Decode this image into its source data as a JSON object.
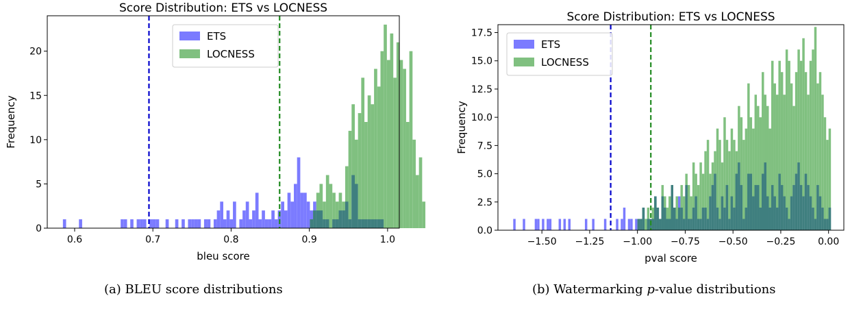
{
  "figure": {
    "caption_a": "(a) BLEU score distributions",
    "caption_b_prefix": "(b) Watermarking ",
    "caption_b_italic": "p",
    "caption_b_suffix": "-value distributions"
  },
  "colors": {
    "ets": "#7b7bff",
    "locness": "#80c080",
    "overlap": "#3f7f7f",
    "ets_line": "#0000cc",
    "locness_line": "#228b22"
  },
  "chart_data": [
    {
      "type": "bar",
      "title": "Score Distribution: ETS vs LOCNESS",
      "xlabel": "bleu score",
      "ylabel": "Frequency",
      "xlim": [
        0.565,
        1.015
      ],
      "ylim": [
        0,
        24
      ],
      "xticks": [
        0.6,
        0.7,
        0.8,
        0.9,
        1.0
      ],
      "xtick_labels": [
        "0.6",
        "0.7",
        "0.8",
        "0.9",
        "1.0"
      ],
      "yticks": [
        0,
        5,
        10,
        15,
        20
      ],
      "ytick_labels": [
        "0",
        "5",
        "10",
        "15",
        "20"
      ],
      "legend": {
        "loc": "upper center",
        "entries": [
          "ETS",
          "LOCNESS"
        ]
      },
      "mean_lines": {
        "ETS": 0.695,
        "LOCNESS": 0.862
      },
      "bin_start": 0.585,
      "bin_width": 0.0041,
      "series": [
        {
          "name": "ETS",
          "values": [
            1,
            0,
            0,
            0,
            0,
            1,
            0,
            0,
            0,
            0,
            0,
            0,
            0,
            0,
            0,
            0,
            0,
            0,
            1,
            1,
            0,
            1,
            0,
            1,
            1,
            1,
            0,
            1,
            1,
            1,
            0,
            0,
            1,
            0,
            0,
            1,
            0,
            1,
            0,
            1,
            1,
            1,
            1,
            0,
            1,
            1,
            0,
            1,
            2,
            3,
            1,
            2,
            1,
            3,
            0,
            1,
            2,
            3,
            1,
            2,
            4,
            1,
            2,
            1,
            1,
            2,
            1,
            2,
            3,
            2,
            4,
            3,
            5,
            8,
            4,
            4,
            3,
            2,
            3,
            2,
            2,
            1,
            1,
            0,
            1,
            1,
            2,
            2,
            3,
            1,
            6,
            5,
            1,
            1,
            1,
            1,
            1,
            1,
            1,
            1,
            0
          ]
        },
        {
          "name": "LOCNESS",
          "values": [
            0,
            0,
            0,
            0,
            0,
            0,
            0,
            0,
            0,
            0,
            0,
            0,
            0,
            0,
            0,
            0,
            0,
            0,
            0,
            0,
            0,
            0,
            0,
            0,
            0,
            0,
            0,
            0,
            0,
            0,
            0,
            0,
            0,
            0,
            0,
            0,
            0,
            0,
            0,
            0,
            0,
            0,
            0,
            0,
            0,
            0,
            0,
            0,
            0,
            0,
            0,
            0,
            0,
            0,
            0,
            0,
            0,
            0,
            0,
            0,
            0,
            0,
            0,
            0,
            0,
            0,
            0,
            0,
            0,
            0,
            0,
            0,
            0,
            0,
            0,
            0,
            0,
            1,
            2,
            4,
            5,
            3,
            6,
            5,
            4,
            3,
            4,
            3,
            7,
            11,
            14,
            10,
            13,
            17,
            12,
            15,
            14,
            18,
            16,
            20,
            23,
            19,
            22,
            17,
            21,
            19,
            18,
            12,
            20,
            10,
            6,
            8,
            3
          ]
        }
      ]
    },
    {
      "type": "bar",
      "title": "Score Distribution: ETS vs LOCNESS",
      "xlabel": "pval score",
      "ylabel": "Frequency",
      "xlim": [
        -1.73,
        0.08
      ],
      "ylim": [
        0,
        18.2
      ],
      "xticks": [
        -1.5,
        -1.25,
        -1.0,
        -0.75,
        -0.5,
        -0.25,
        0.0
      ],
      "xtick_labels": [
        "−1.50",
        "−1.25",
        "−1.00",
        "−0.75",
        "−0.50",
        "−0.25",
        "0.00"
      ],
      "yticks": [
        0,
        2.5,
        5,
        7.5,
        10,
        12.5,
        15,
        17.5
      ],
      "ytick_labels": [
        "0.0",
        "2.5",
        "5.0",
        "7.5",
        "10.0",
        "12.5",
        "15.0",
        "17.5"
      ],
      "legend": {
        "loc": "upper left",
        "entries": [
          "ETS",
          "LOCNESS"
        ]
      },
      "mean_lines": {
        "ETS": -1.14,
        "LOCNESS": -0.93
      },
      "bin_start": -1.65,
      "bin_width": 0.0125,
      "series": [
        {
          "name": "ETS",
          "values": [
            1,
            0,
            0,
            0,
            1,
            0,
            0,
            0,
            0,
            1,
            1,
            0,
            1,
            0,
            1,
            1,
            0,
            0,
            0,
            1,
            0,
            1,
            0,
            1,
            0,
            0,
            0,
            0,
            0,
            0,
            1,
            0,
            0,
            1,
            0,
            0,
            0,
            0,
            1,
            0,
            0,
            0,
            0,
            1,
            0,
            1,
            2,
            0,
            1,
            1,
            0,
            1,
            1,
            1,
            2,
            0,
            1,
            1,
            1,
            3,
            2,
            1,
            3,
            2,
            1,
            1,
            4,
            2,
            1,
            3,
            2,
            1,
            4,
            1,
            1,
            2,
            3,
            1,
            1,
            2,
            2,
            1,
            3,
            4,
            5,
            2,
            1,
            3,
            2,
            4,
            1,
            3,
            2,
            5,
            6,
            4,
            1,
            2,
            5,
            5,
            3,
            4,
            4,
            2,
            5,
            6,
            3,
            2,
            4,
            3,
            2,
            5,
            4,
            3,
            2,
            1,
            3,
            4,
            5,
            6,
            4,
            3,
            5,
            4,
            3,
            2,
            1,
            4,
            3,
            2,
            1,
            1,
            2
          ]
        },
        {
          "name": "LOCNESS",
          "values": [
            0,
            0,
            0,
            0,
            0,
            0,
            0,
            0,
            0,
            0,
            0,
            0,
            0,
            0,
            0,
            0,
            0,
            0,
            0,
            0,
            0,
            0,
            0,
            0,
            0,
            0,
            0,
            0,
            0,
            0,
            0,
            0,
            0,
            0,
            0,
            0,
            0,
            0,
            0,
            0,
            0,
            0,
            0,
            0,
            0,
            0,
            0,
            0,
            0,
            0,
            0,
            0,
            1,
            1,
            2,
            1,
            2,
            1,
            2,
            3,
            2,
            1,
            4,
            3,
            2,
            3,
            4,
            2,
            3,
            2,
            4,
            3,
            5,
            4,
            3,
            6,
            5,
            4,
            6,
            5,
            7,
            8,
            5,
            6,
            7,
            9,
            8,
            6,
            10,
            8,
            7,
            9,
            8,
            7,
            11,
            10,
            8,
            9,
            13,
            10,
            9,
            12,
            11,
            10,
            14,
            12,
            11,
            9,
            15,
            13,
            12,
            15,
            14,
            12,
            16,
            15,
            13,
            11,
            14,
            16,
            15,
            17,
            14,
            12,
            15,
            16,
            18,
            13,
            14,
            12,
            10,
            8,
            9
          ]
        }
      ]
    }
  ]
}
